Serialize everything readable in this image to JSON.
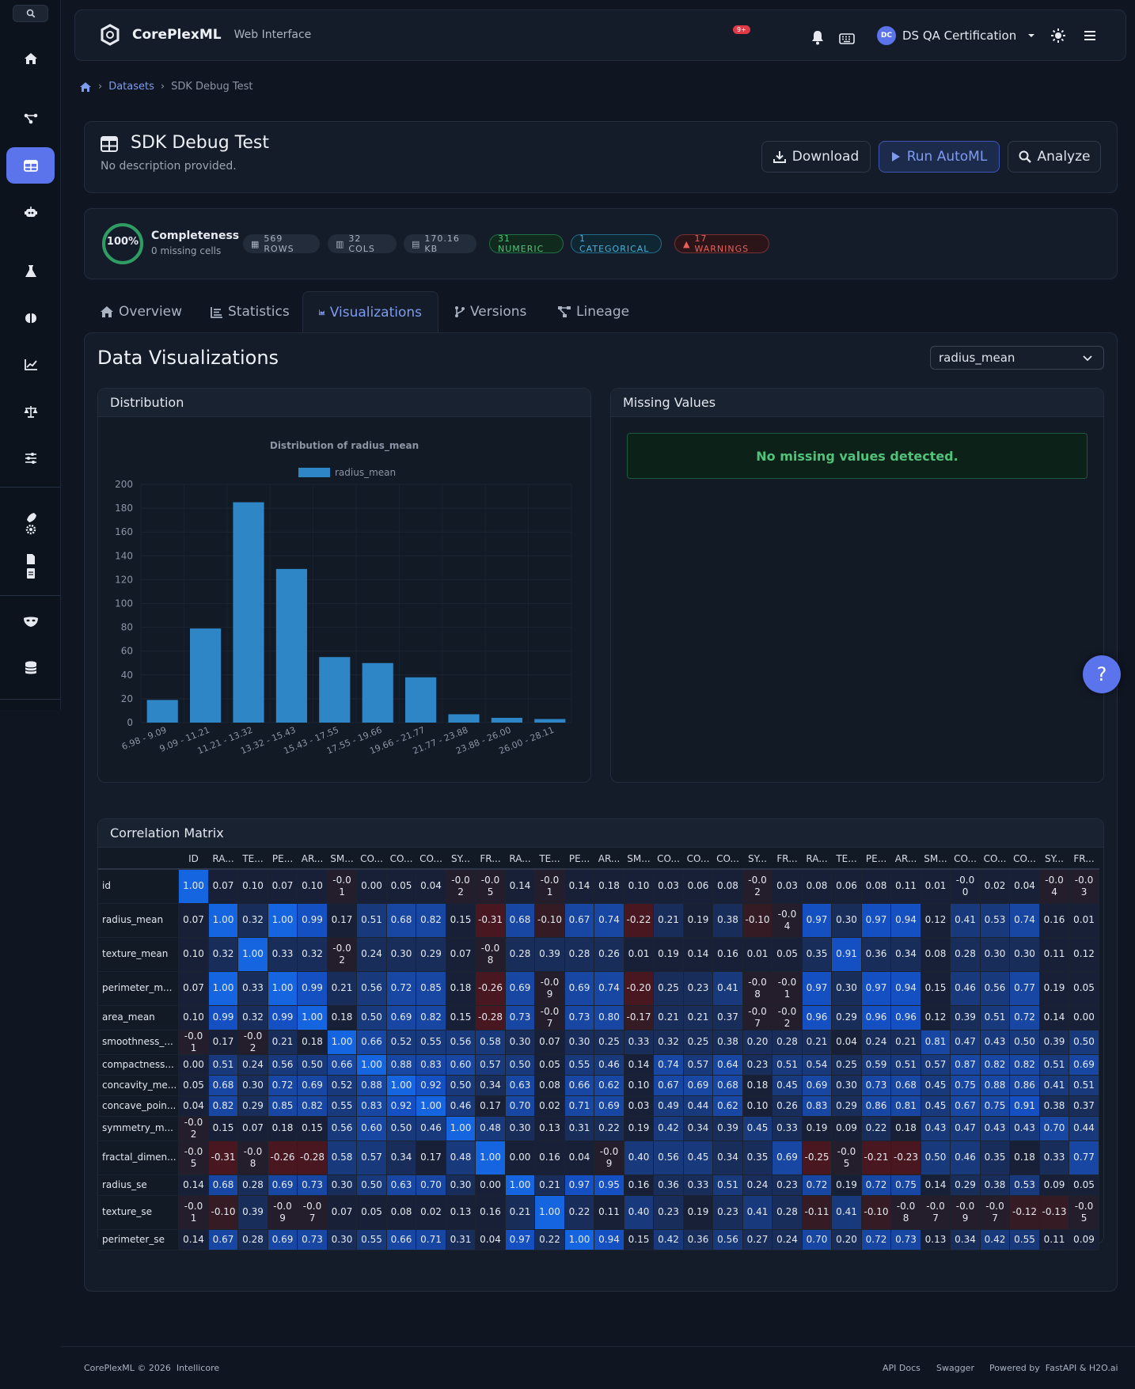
{
  "app": {
    "name": "CorePlexML",
    "subtitle": "Web Interface",
    "notif_badge": "9+",
    "user_initials": "DC",
    "user_name": "DS QA Certification"
  },
  "breadcrumb": {
    "parent": "Datasets",
    "current": "SDK Debug Test"
  },
  "dataset": {
    "title": "SDK Debug Test",
    "description": "No description provided.",
    "download": "Download",
    "run_automl": "Run AutoML",
    "analyze": "Analyze"
  },
  "stats": {
    "completeness_pct": "100%",
    "completeness_label": "Completeness",
    "missing": "0 missing cells",
    "rows": "569 ROWS",
    "cols": "32 COLS",
    "size": "170.16 KB",
    "numeric": "31 NUMERIC",
    "categorical": "1 CATEGORICAL",
    "warnings": "17 WARNINGS"
  },
  "colors": {
    "accent": "#5b74ec",
    "numeric": "#52c27a",
    "categorical": "#4ab0d9",
    "warning": "#e8605c",
    "bar": "#2f86c6"
  },
  "tabs": [
    "Overview",
    "Statistics",
    "Visualizations",
    "Versions",
    "Lineage"
  ],
  "viz": {
    "title": "Data Visualizations",
    "selected_column": "radius_mean",
    "distribution_title": "Distribution",
    "missing_title": "Missing Values",
    "no_missing": "No missing values detected.",
    "corr_title": "Correlation Matrix"
  },
  "chart_data": {
    "type": "bar",
    "title": "Distribution of radius_mean",
    "legend": "radius_mean",
    "categories": [
      "6.98 - 9.09",
      "9.09 - 11.21",
      "11.21 - 13.32",
      "13.32 - 15.43",
      "15.43 - 17.55",
      "17.55 - 19.66",
      "19.66 - 21.77",
      "21.77 - 23.88",
      "23.88 - 26.00",
      "26.00 - 28.11"
    ],
    "series": [
      {
        "name": "radius_mean",
        "values": [
          19,
          79,
          185,
          129,
          55,
          50,
          38,
          7,
          4,
          3
        ]
      }
    ],
    "ylim": [
      0,
      200
    ],
    "yticks": [
      0,
      20,
      40,
      60,
      80,
      100,
      120,
      140,
      160,
      180,
      200
    ]
  },
  "corr": {
    "cols": [
      "ID",
      "RA...",
      "TE...",
      "PE...",
      "AR...",
      "SM...",
      "CO...",
      "CO...",
      "CO...",
      "SY...",
      "FR...",
      "RA...",
      "TE...",
      "PE...",
      "AR...",
      "SM...",
      "CO...",
      "CO...",
      "CO...",
      "SY...",
      "FR...",
      "RA...",
      "TE...",
      "PE...",
      "AR...",
      "SM...",
      "CO...",
      "CO...",
      "CO...",
      "SY...",
      "FR..."
    ],
    "rows": [
      {
        "label": "id",
        "v": [
          "1.00",
          "0.07",
          "0.10",
          "0.07",
          "0.10",
          "-0.01",
          "0.00",
          "0.05",
          "0.04",
          "-0.02",
          "-0.05",
          "0.14",
          "-0.01",
          "0.14",
          "0.18",
          "0.10",
          "0.03",
          "0.06",
          "0.08",
          "-0.02",
          "0.03",
          "0.08",
          "0.06",
          "0.08",
          "0.11",
          "0.01",
          "-0.00",
          "0.02",
          "0.04",
          "-0.04",
          "-0.03"
        ]
      },
      {
        "label": "radius_mean",
        "v": [
          "0.07",
          "1.00",
          "0.32",
          "1.00",
          "0.99",
          "0.17",
          "0.51",
          "0.68",
          "0.82",
          "0.15",
          "-0.31",
          "0.68",
          "-0.10",
          "0.67",
          "0.74",
          "-0.22",
          "0.21",
          "0.19",
          "0.38",
          "-0.10",
          "-0.04",
          "0.97",
          "0.30",
          "0.97",
          "0.94",
          "0.12",
          "0.41",
          "0.53",
          "0.74",
          "0.16",
          "0.01"
        ]
      },
      {
        "label": "texture_mean",
        "v": [
          "0.10",
          "0.32",
          "1.00",
          "0.33",
          "0.32",
          "-0.02",
          "0.24",
          "0.30",
          "0.29",
          "0.07",
          "-0.08",
          "0.28",
          "0.39",
          "0.28",
          "0.26",
          "0.01",
          "0.19",
          "0.14",
          "0.16",
          "0.01",
          "0.05",
          "0.35",
          "0.91",
          "0.36",
          "0.34",
          "0.08",
          "0.28",
          "0.30",
          "0.30",
          "0.11",
          "0.12"
        ]
      },
      {
        "label": "perimeter_m...",
        "v": [
          "0.07",
          "1.00",
          "0.33",
          "1.00",
          "0.99",
          "0.21",
          "0.56",
          "0.72",
          "0.85",
          "0.18",
          "-0.26",
          "0.69",
          "-0.09",
          "0.69",
          "0.74",
          "-0.20",
          "0.25",
          "0.23",
          "0.41",
          "-0.08",
          "-0.01",
          "0.97",
          "0.30",
          "0.97",
          "0.94",
          "0.15",
          "0.46",
          "0.56",
          "0.77",
          "0.19",
          "0.05"
        ]
      },
      {
        "label": "area_mean",
        "v": [
          "0.10",
          "0.99",
          "0.32",
          "0.99",
          "1.00",
          "0.18",
          "0.50",
          "0.69",
          "0.82",
          "0.15",
          "-0.28",
          "0.73",
          "-0.07",
          "0.73",
          "0.80",
          "-0.17",
          "0.21",
          "0.21",
          "0.37",
          "-0.07",
          "-0.02",
          "0.96",
          "0.29",
          "0.96",
          "0.96",
          "0.12",
          "0.39",
          "0.51",
          "0.72",
          "0.14",
          "0.00"
        ]
      },
      {
        "label": "smoothness_...",
        "v": [
          "-0.01",
          "0.17",
          "-0.02",
          "0.21",
          "0.18",
          "1.00",
          "0.66",
          "0.52",
          "0.55",
          "0.56",
          "0.58",
          "0.30",
          "0.07",
          "0.30",
          "0.25",
          "0.33",
          "0.32",
          "0.25",
          "0.38",
          "0.20",
          "0.28",
          "0.21",
          "0.04",
          "0.24",
          "0.21",
          "0.81",
          "0.47",
          "0.43",
          "0.50",
          "0.39",
          "0.50"
        ]
      },
      {
        "label": "compactness...",
        "v": [
          "0.00",
          "0.51",
          "0.24",
          "0.56",
          "0.50",
          "0.66",
          "1.00",
          "0.88",
          "0.83",
          "0.60",
          "0.57",
          "0.50",
          "0.05",
          "0.55",
          "0.46",
          "0.14",
          "0.74",
          "0.57",
          "0.64",
          "0.23",
          "0.51",
          "0.54",
          "0.25",
          "0.59",
          "0.51",
          "0.57",
          "0.87",
          "0.82",
          "0.82",
          "0.51",
          "0.69"
        ]
      },
      {
        "label": "concavity_me...",
        "v": [
          "0.05",
          "0.68",
          "0.30",
          "0.72",
          "0.69",
          "0.52",
          "0.88",
          "1.00",
          "0.92",
          "0.50",
          "0.34",
          "0.63",
          "0.08",
          "0.66",
          "0.62",
          "0.10",
          "0.67",
          "0.69",
          "0.68",
          "0.18",
          "0.45",
          "0.69",
          "0.30",
          "0.73",
          "0.68",
          "0.45",
          "0.75",
          "0.88",
          "0.86",
          "0.41",
          "0.51"
        ]
      },
      {
        "label": "concave_poin...",
        "v": [
          "0.04",
          "0.82",
          "0.29",
          "0.85",
          "0.82",
          "0.55",
          "0.83",
          "0.92",
          "1.00",
          "0.46",
          "0.17",
          "0.70",
          "0.02",
          "0.71",
          "0.69",
          "0.03",
          "0.49",
          "0.44",
          "0.62",
          "0.10",
          "0.26",
          "0.83",
          "0.29",
          "0.86",
          "0.81",
          "0.45",
          "0.67",
          "0.75",
          "0.91",
          "0.38",
          "0.37"
        ]
      },
      {
        "label": "symmetry_m...",
        "v": [
          "-0.02",
          "0.15",
          "0.07",
          "0.18",
          "0.15",
          "0.56",
          "0.60",
          "0.50",
          "0.46",
          "1.00",
          "0.48",
          "0.30",
          "0.13",
          "0.31",
          "0.22",
          "0.19",
          "0.42",
          "0.34",
          "0.39",
          "0.45",
          "0.33",
          "0.19",
          "0.09",
          "0.22",
          "0.18",
          "0.43",
          "0.47",
          "0.43",
          "0.43",
          "0.70",
          "0.44"
        ]
      },
      {
        "label": "fractal_dimen...",
        "v": [
          "-0.05",
          "-0.31",
          "-0.08",
          "-0.26",
          "-0.28",
          "0.58",
          "0.57",
          "0.34",
          "0.17",
          "0.48",
          "1.00",
          "0.00",
          "0.16",
          "0.04",
          "-0.09",
          "0.40",
          "0.56",
          "0.45",
          "0.34",
          "0.35",
          "0.69",
          "-0.25",
          "-0.05",
          "-0.21",
          "-0.23",
          "0.50",
          "0.46",
          "0.35",
          "0.18",
          "0.33",
          "0.77"
        ]
      },
      {
        "label": "radius_se",
        "v": [
          "0.14",
          "0.68",
          "0.28",
          "0.69",
          "0.73",
          "0.30",
          "0.50",
          "0.63",
          "0.70",
          "0.30",
          "0.00",
          "1.00",
          "0.21",
          "0.97",
          "0.95",
          "0.16",
          "0.36",
          "0.33",
          "0.51",
          "0.24",
          "0.23",
          "0.72",
          "0.19",
          "0.72",
          "0.75",
          "0.14",
          "0.29",
          "0.38",
          "0.53",
          "0.09",
          "0.05"
        ]
      },
      {
        "label": "texture_se",
        "v": [
          "-0.01",
          "-0.10",
          "0.39",
          "-0.09",
          "-0.07",
          "0.07",
          "0.05",
          "0.08",
          "0.02",
          "0.13",
          "0.16",
          "0.21",
          "1.00",
          "0.22",
          "0.11",
          "0.40",
          "0.23",
          "0.19",
          "0.23",
          "0.41",
          "0.28",
          "-0.11",
          "0.41",
          "-0.10",
          "-0.08",
          "-0.07",
          "-0.09",
          "-0.07",
          "-0.12",
          "-0.13",
          "-0.05"
        ]
      },
      {
        "label": "perimeter_se",
        "v": [
          "0.14",
          "0.67",
          "0.28",
          "0.69",
          "0.73",
          "0.30",
          "0.55",
          "0.66",
          "0.71",
          "0.31",
          "0.04",
          "0.97",
          "0.22",
          "1.00",
          "0.94",
          "0.15",
          "0.42",
          "0.36",
          "0.56",
          "0.27",
          "0.24",
          "0.70",
          "0.20",
          "0.72",
          "0.73",
          "0.13",
          "0.34",
          "0.42",
          "0.55",
          "0.11",
          "0.09"
        ]
      }
    ]
  },
  "footer": {
    "copyright": "CorePlexML © 2026",
    "company": "Intellicore",
    "api_docs": "API Docs",
    "swagger": "Swagger",
    "powered_label": "Powered by",
    "powered": "FastAPI & H2O.ai"
  }
}
